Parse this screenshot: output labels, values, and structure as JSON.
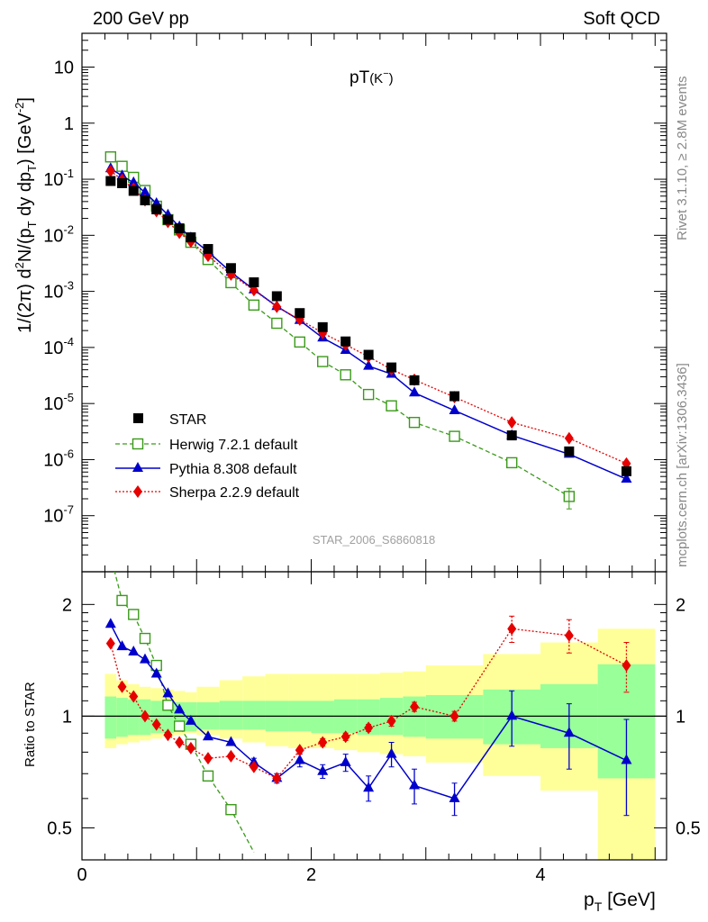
{
  "header": {
    "left": "200 GeV pp",
    "right": "Soft QCD"
  },
  "side_text": {
    "rivet": "Rivet 3.1.10, ≥ 2.8M events",
    "mcplots": "mcplots.cern.ch [arXiv:1306.3436]"
  },
  "watermark": "STAR_2006_S6860818",
  "colors": {
    "star": "#000000",
    "herwig": "#3a9a1a",
    "pythia": "#0000cc",
    "sherpa": "#e60000",
    "band_inner": "#99ff99",
    "band_outer": "#ffff99"
  },
  "chart_data": [
    {
      "type": "scatter",
      "title": "pT(K⁻)",
      "xlabel": "p_T [GeV]",
      "ylabel": "1/(2π) d²N/(p_T dy dp_T) [GeV⁻²]",
      "y_scale": "log",
      "xlim": [
        0,
        5.1
      ],
      "ylim": [
        1e-08,
        40
      ],
      "y_tick_labels": [
        "10^-7",
        "10^-6",
        "10^-5",
        "10^-4",
        "10^-3",
        "10^-2",
        "10^-1",
        "1",
        "10"
      ],
      "legend_position": "lower-left",
      "series": [
        {
          "name": "STAR",
          "marker": "square-filled",
          "x": [
            0.25,
            0.35,
            0.45,
            0.55,
            0.65,
            0.75,
            0.85,
            0.95,
            1.1,
            1.3,
            1.5,
            1.7,
            1.9,
            2.1,
            2.3,
            2.5,
            2.7,
            2.9,
            3.25,
            3.75,
            4.25,
            4.75
          ],
          "y": [
            0.093,
            0.085,
            0.062,
            0.042,
            0.029,
            0.019,
            0.0133,
            0.0092,
            0.0057,
            0.0026,
            0.00145,
            0.00082,
            0.00041,
            0.00023,
            0.000128,
            7.4e-05,
            4.4e-05,
            2.6e-05,
            1.35e-05,
            2.7e-06,
            1.4e-06,
            6.2e-07
          ]
        },
        {
          "name": "Herwig 7.2.1 default",
          "marker": "square-open",
          "x": [
            0.25,
            0.35,
            0.45,
            0.55,
            0.65,
            0.75,
            0.85,
            0.95,
            1.1,
            1.3,
            1.5,
            1.7,
            1.9,
            2.1,
            2.3,
            2.5,
            2.7,
            2.9,
            3.25,
            3.75,
            4.25
          ],
          "y": [
            0.25,
            0.17,
            0.108,
            0.063,
            0.033,
            0.019,
            0.0125,
            0.0075,
            0.0037,
            0.00143,
            0.00057,
            0.00027,
            0.000125,
            5.6e-05,
            3.25e-05,
            1.45e-05,
            9.1e-06,
            4.6e-06,
            2.6e-06,
            8.8e-07,
            2.2e-07
          ]
        },
        {
          "name": "Pythia 8.308 default",
          "marker": "triangle-filled",
          "x": [
            0.25,
            0.35,
            0.45,
            0.55,
            0.65,
            0.75,
            0.85,
            0.95,
            1.1,
            1.3,
            1.5,
            1.7,
            1.9,
            2.1,
            2.3,
            2.5,
            2.7,
            2.9,
            3.25,
            3.75,
            4.25,
            4.75
          ],
          "y": [
            0.155,
            0.115,
            0.087,
            0.058,
            0.037,
            0.023,
            0.0142,
            0.009,
            0.0051,
            0.0022,
            0.00107,
            0.00054,
            0.000305,
            0.000148,
            8.9e-05,
            4.65e-05,
            3.35e-05,
            1.55e-05,
            7.5e-06,
            2.7e-06,
            1.25e-06,
            4.5e-07
          ]
        },
        {
          "name": "Sherpa 2.2.9 default",
          "marker": "diamond-filled",
          "x": [
            0.25,
            0.35,
            0.45,
            0.55,
            0.65,
            0.75,
            0.85,
            0.95,
            1.1,
            1.3,
            1.5,
            1.7,
            1.9,
            2.1,
            2.3,
            2.5,
            2.7,
            2.9,
            3.25,
            3.75,
            4.25,
            4.75
          ],
          "y": [
            0.14,
            0.098,
            0.068,
            0.042,
            0.027,
            0.0173,
            0.0111,
            0.0077,
            0.0043,
            0.002,
            0.00105,
            0.00053,
            0.000315,
            0.000181,
            0.000112,
            6.85e-05,
            4.05e-05,
            2.65e-05,
            1.3e-05,
            4.6e-06,
            2.4e-06,
            8.5e-07
          ]
        }
      ]
    },
    {
      "type": "scatter",
      "xlabel": "p_T [GeV]",
      "ylabel": "Ratio to STAR",
      "y_scale": "log",
      "xlim": [
        0,
        5.1
      ],
      "ylim": [
        0.41,
        2.45
      ],
      "x_tick_labels": [
        "0",
        "2",
        "4"
      ],
      "y_tick_labels": [
        "0.5",
        "1",
        "2"
      ],
      "reference_band": {
        "bins": [
          [
            0.2,
            0.3
          ],
          [
            0.3,
            0.4
          ],
          [
            0.4,
            0.5
          ],
          [
            0.5,
            0.6
          ],
          [
            0.6,
            0.7
          ],
          [
            0.7,
            0.8
          ],
          [
            0.8,
            0.9
          ],
          [
            0.9,
            1.0
          ],
          [
            1.0,
            1.2
          ],
          [
            1.2,
            1.4
          ],
          [
            1.4,
            1.6
          ],
          [
            1.6,
            1.8
          ],
          [
            1.8,
            2.0
          ],
          [
            2.0,
            2.2
          ],
          [
            2.2,
            2.4
          ],
          [
            2.4,
            2.6
          ],
          [
            2.6,
            2.8
          ],
          [
            2.8,
            3.0
          ],
          [
            3.0,
            3.5
          ],
          [
            3.5,
            4.0
          ],
          [
            4.0,
            4.5
          ],
          [
            4.5,
            5.0
          ]
        ],
        "inner": [
          [
            0.87,
            1.13
          ],
          [
            0.88,
            1.12
          ],
          [
            0.89,
            1.11
          ],
          [
            0.89,
            1.11
          ],
          [
            0.9,
            1.1
          ],
          [
            0.9,
            1.1
          ],
          [
            0.91,
            1.09
          ],
          [
            0.91,
            1.09
          ],
          [
            0.92,
            1.09
          ],
          [
            0.92,
            1.1
          ],
          [
            0.92,
            1.1
          ],
          [
            0.91,
            1.1
          ],
          [
            0.91,
            1.1
          ],
          [
            0.9,
            1.1
          ],
          [
            0.9,
            1.11
          ],
          [
            0.89,
            1.11
          ],
          [
            0.89,
            1.12
          ],
          [
            0.88,
            1.13
          ],
          [
            0.87,
            1.14
          ],
          [
            0.84,
            1.18
          ],
          [
            0.82,
            1.22
          ],
          [
            0.68,
            1.38
          ]
        ],
        "outer": [
          [
            0.82,
            1.3
          ],
          [
            0.84,
            1.25
          ],
          [
            0.85,
            1.22
          ],
          [
            0.86,
            1.2
          ],
          [
            0.87,
            1.19
          ],
          [
            0.88,
            1.18
          ],
          [
            0.89,
            1.17
          ],
          [
            0.9,
            1.16
          ],
          [
            0.89,
            1.2
          ],
          [
            0.87,
            1.25
          ],
          [
            0.85,
            1.28
          ],
          [
            0.83,
            1.3
          ],
          [
            0.82,
            1.3
          ],
          [
            0.82,
            1.3
          ],
          [
            0.81,
            1.3
          ],
          [
            0.8,
            1.3
          ],
          [
            0.79,
            1.31
          ],
          [
            0.78,
            1.32
          ],
          [
            0.75,
            1.37
          ],
          [
            0.69,
            1.47
          ],
          [
            0.63,
            1.58
          ],
          [
            0.35,
            1.72
          ]
        ]
      },
      "series": [
        {
          "name": "Herwig 7.2.1 default",
          "marker": "square-open",
          "x": [
            0.35,
            0.45,
            0.55,
            0.65,
            0.75,
            0.85,
            0.95,
            1.1,
            1.3
          ],
          "y": [
            2.05,
            1.88,
            1.62,
            1.37,
            1.07,
            0.94,
            0.84,
            0.69,
            0.56
          ],
          "line_x": [
            0.25,
            0.35,
            0.45,
            0.55,
            0.65,
            0.75,
            0.85,
            0.95,
            1.1,
            1.3,
            1.5
          ],
          "line_y": [
            2.7,
            2.05,
            1.88,
            1.62,
            1.37,
            1.07,
            0.94,
            0.84,
            0.69,
            0.56,
            0.43
          ]
        },
        {
          "name": "Pythia 8.308 default",
          "marker": "triangle-filled",
          "x": [
            0.25,
            0.35,
            0.45,
            0.55,
            0.65,
            0.75,
            0.85,
            0.95,
            1.1,
            1.3,
            1.5,
            1.7,
            1.9,
            2.1,
            2.3,
            2.5,
            2.7,
            2.9,
            3.25,
            3.75,
            4.25,
            4.75
          ],
          "y": [
            1.77,
            1.54,
            1.49,
            1.42,
            1.3,
            1.15,
            1.04,
            0.97,
            0.88,
            0.85,
            0.75,
            0.68,
            0.76,
            0.71,
            0.75,
            0.64,
            0.79,
            0.65,
            0.6,
            1.0,
            0.9,
            0.76
          ],
          "err": [
            0,
            0,
            0,
            0,
            0,
            0,
            0,
            0,
            0,
            0,
            0.02,
            0.02,
            0.03,
            0.03,
            0.04,
            0.05,
            0.06,
            0.07,
            0.06,
            0.17,
            0.18,
            0.22
          ]
        },
        {
          "name": "Sherpa 2.2.9 default",
          "marker": "diamond-filled",
          "x": [
            0.25,
            0.35,
            0.45,
            0.55,
            0.65,
            0.75,
            0.85,
            0.95,
            1.1,
            1.3,
            1.5,
            1.7,
            1.9,
            2.1,
            2.3,
            2.5,
            2.7,
            2.9,
            3.25,
            3.75,
            4.25,
            4.75
          ],
          "y": [
            1.57,
            1.2,
            1.13,
            1.0,
            0.95,
            0.89,
            0.85,
            0.82,
            0.77,
            0.78,
            0.73,
            0.68,
            0.81,
            0.85,
            0.88,
            0.93,
            0.97,
            1.06,
            1.0,
            1.72,
            1.65,
            1.37
          ],
          "err": [
            0,
            0,
            0,
            0,
            0,
            0,
            0,
            0,
            0,
            0,
            0,
            0,
            0.01,
            0.02,
            0.02,
            0.02,
            0.03,
            0.03,
            0.03,
            0.14,
            0.17,
            0.21
          ]
        }
      ]
    }
  ]
}
